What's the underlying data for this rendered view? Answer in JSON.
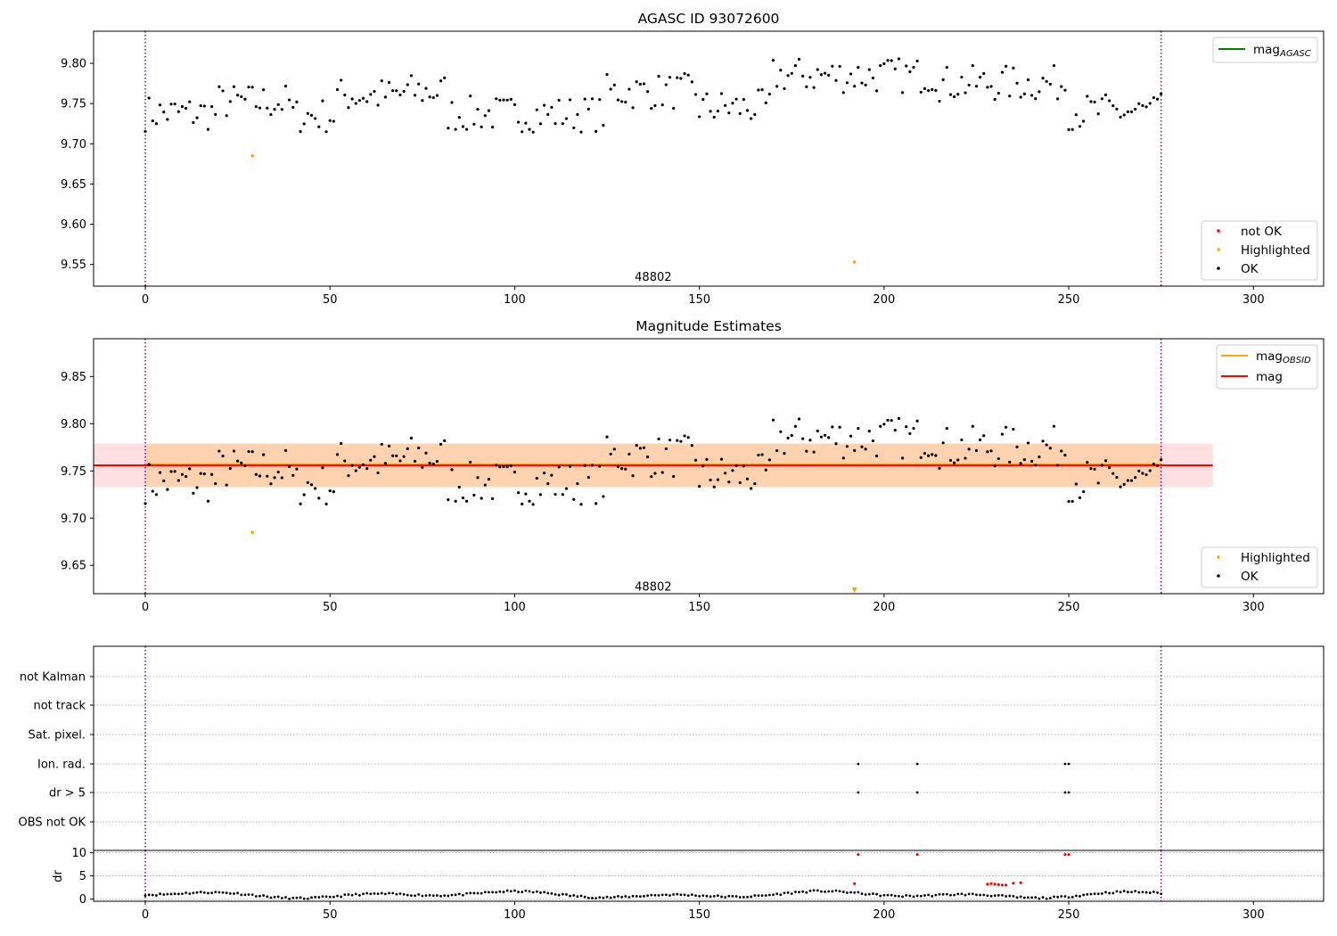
{
  "chart_data": [
    {
      "type": "scatter",
      "title": "AGASC ID 93072600",
      "xlim": [
        -14,
        319
      ],
      "ylim": [
        9.523,
        9.84
      ],
      "xticks": [
        0,
        50,
        100,
        150,
        200,
        250,
        300
      ],
      "yticks": [
        9.55,
        9.6,
        9.65,
        9.7,
        9.75,
        9.8
      ],
      "annotation": {
        "text": "48802",
        "x": 137.5,
        "y": 9.534
      },
      "vlines": [
        0,
        275
      ],
      "legend_lines": [
        {
          "label": "mag",
          "sub": "AGASC",
          "color": "#008000"
        }
      ],
      "legend_points": [
        {
          "label": "not OK",
          "color": "#ff0000"
        },
        {
          "label": "Highlighted",
          "color": "#ffa500"
        },
        {
          "label": "OK",
          "color": "#000000"
        }
      ],
      "series": [
        {
          "name": "Highlighted",
          "color": "#ffa500",
          "points": [
            [
              29,
              9.685
            ],
            [
              192,
              9.553
            ]
          ]
        }
      ]
    },
    {
      "type": "scatter",
      "title": "Magnitude Estimates",
      "xlim": [
        -14,
        319
      ],
      "ylim": [
        9.62,
        9.89
      ],
      "xticks": [
        0,
        50,
        100,
        150,
        200,
        250,
        300
      ],
      "yticks": [
        9.65,
        9.7,
        9.75,
        9.8,
        9.85
      ],
      "annotation": {
        "text": "48802",
        "x": 137.5,
        "y": 9.627
      },
      "vlines": [
        0,
        275
      ],
      "mag": 9.756,
      "mag_band": [
        9.733,
        9.779
      ],
      "mag_obsid": 9.756,
      "mag_obsid_band": [
        9.733,
        9.779
      ],
      "mag_obsid_xrange": [
        0,
        275
      ],
      "legend_lines": [
        {
          "label": "mag",
          "sub": "OBSID",
          "color": "#ffa500"
        },
        {
          "label": "mag",
          "sub": "",
          "color": "#ff0000"
        }
      ],
      "legend_points": [
        {
          "label": "Highlighted",
          "color": "#ffa500"
        },
        {
          "label": "OK",
          "color": "#000000"
        }
      ],
      "series": [
        {
          "name": "Highlighted",
          "color": "#ffa500",
          "points": [
            [
              29,
              9.685
            ]
          ]
        }
      ]
    },
    {
      "type": "scatter",
      "title": "",
      "xlim": [
        -14,
        319
      ],
      "categories": [
        "not Kalman",
        "not track",
        "Sat. pixel.",
        "Ion. rad.",
        "dr > 5",
        "OBS not OK"
      ],
      "flag_points": {
        "Ion. rad.": [
          193,
          209,
          249,
          250
        ],
        "dr > 5": [
          193,
          209,
          249,
          250
        ]
      },
      "vlines": [
        0,
        275
      ]
    },
    {
      "type": "scatter",
      "title": "",
      "ylabel": "dr",
      "xlim": [
        -14,
        319
      ],
      "ylim": [
        -0.5,
        10.5
      ],
      "xticks": [
        0,
        50,
        100,
        150,
        200,
        250,
        300
      ],
      "yticks": [
        0,
        5,
        10
      ],
      "vlines": [
        0,
        275
      ],
      "red_points": [
        [
          192,
          3.3
        ],
        [
          193,
          9.6
        ],
        [
          209,
          9.6
        ],
        [
          228,
          3.2
        ],
        [
          229,
          3.3
        ],
        [
          230,
          3.2
        ],
        [
          231,
          3.1
        ],
        [
          232,
          3.0
        ],
        [
          233,
          3.0
        ],
        [
          235,
          3.4
        ],
        [
          237,
          3.5
        ],
        [
          249,
          9.6
        ],
        [
          250,
          9.6
        ]
      ]
    }
  ]
}
